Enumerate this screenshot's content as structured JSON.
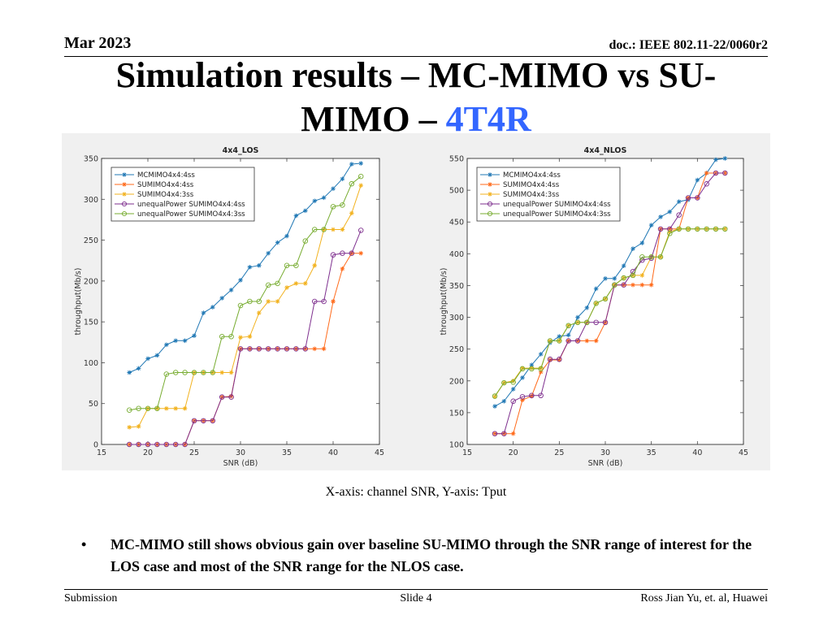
{
  "header": {
    "date": "Mar 2023",
    "doc": "doc.: IEEE 802.11-22/0060r2"
  },
  "title": {
    "line1": "Simulation results – MC-MIMO vs SU-",
    "line2_prefix": "MIMO – ",
    "line2_accent": "4T4R"
  },
  "colors": {
    "accent": "#3366ff",
    "series": [
      "#1f77b4",
      "#ff6a1a",
      "#f2b21f",
      "#7e2f8e",
      "#77ac30"
    ]
  },
  "chart_data": [
    {
      "type": "line",
      "title": "4x4_LOS",
      "xlabel": "SNR (dB)",
      "ylabel": "throughput(Mb/s)",
      "xlim": [
        15,
        45
      ],
      "ylim": [
        0,
        350
      ],
      "xticks": [
        15,
        20,
        25,
        30,
        35,
        40,
        45
      ],
      "yticks": [
        0,
        50,
        100,
        150,
        200,
        250,
        300,
        350
      ],
      "legend_position": "top-left",
      "x": [
        18,
        19,
        20,
        21,
        22,
        23,
        24,
        25,
        26,
        27,
        28,
        29,
        30,
        31,
        32,
        33,
        34,
        35,
        36,
        37,
        38,
        39,
        40,
        41,
        42,
        43
      ],
      "series": [
        {
          "name": "MCMIMO4x4:4ss",
          "marker": "star",
          "values": [
            88,
            93,
            105,
            109,
            122,
            127,
            127,
            133,
            161,
            168,
            179,
            189,
            201,
            217,
            219,
            234,
            247,
            255,
            280,
            286,
            298,
            302,
            313,
            325,
            343,
            344
          ]
        },
        {
          "name": "SUMIMO4x4:4ss",
          "marker": "star",
          "values": [
            0,
            0,
            0,
            0,
            0,
            0,
            0,
            29,
            29,
            29,
            58,
            59,
            117,
            117,
            117,
            117,
            117,
            117,
            117,
            117,
            117,
            117,
            175,
            215,
            234,
            234
          ]
        },
        {
          "name": "SUMIMO4x4:3ss",
          "marker": "star",
          "values": [
            21,
            22,
            44,
            44,
            44,
            44,
            44,
            88,
            88,
            88,
            88,
            88,
            131,
            132,
            161,
            175,
            175,
            192,
            197,
            197,
            219,
            263,
            263,
            263,
            283,
            317
          ]
        },
        {
          "name": "unequalPower SUMIMO4x4:4ss",
          "marker": "circle",
          "values": [
            0,
            0,
            0,
            0,
            0,
            0,
            0,
            29,
            29,
            29,
            58,
            58,
            117,
            117,
            117,
            117,
            117,
            117,
            117,
            117,
            175,
            175,
            232,
            234,
            234,
            262
          ]
        },
        {
          "name": "unequalPower SUMIMO4x4:3ss",
          "marker": "circle",
          "values": [
            42,
            44,
            44,
            44,
            86,
            88,
            88,
            88,
            88,
            88,
            132,
            132,
            170,
            175,
            175,
            195,
            197,
            219,
            219,
            249,
            263,
            263,
            291,
            293,
            319,
            328
          ]
        }
      ]
    },
    {
      "type": "line",
      "title": "4x4_NLOS",
      "xlabel": "SNR (dB)",
      "ylabel": "throughput(Mb/s)",
      "xlim": [
        15,
        45
      ],
      "ylim": [
        100,
        550
      ],
      "xticks": [
        15,
        20,
        25,
        30,
        35,
        40,
        45
      ],
      "yticks": [
        100,
        150,
        200,
        250,
        300,
        350,
        400,
        450,
        500,
        550
      ],
      "legend_position": "top-left",
      "x": [
        18,
        19,
        20,
        21,
        22,
        23,
        24,
        25,
        26,
        27,
        28,
        29,
        30,
        31,
        32,
        33,
        34,
        35,
        36,
        37,
        38,
        39,
        40,
        41,
        42,
        43
      ],
      "series": [
        {
          "name": "MCMIMO4x4:4ss",
          "marker": "star",
          "values": [
            160,
            168,
            187,
            205,
            225,
            242,
            260,
            270,
            272,
            300,
            315,
            345,
            361,
            361,
            381,
            408,
            417,
            445,
            458,
            466,
            482,
            485,
            516,
            527,
            548,
            550
          ]
        },
        {
          "name": "SUMIMO4x4:4ss",
          "marker": "star",
          "values": [
            117,
            117,
            117,
            170,
            176,
            214,
            233,
            233,
            263,
            263,
            263,
            263,
            292,
            351,
            351,
            351,
            351,
            351,
            439,
            439,
            439,
            488,
            488,
            527,
            527,
            527
          ]
        },
        {
          "name": "SUMIMO4x4:3ss",
          "marker": "star",
          "values": [
            175,
            197,
            200,
            220,
            220,
            220,
            263,
            263,
            287,
            292,
            292,
            322,
            329,
            351,
            362,
            366,
            366,
            395,
            395,
            435,
            439,
            439,
            439,
            439,
            439,
            439
          ]
        },
        {
          "name": "unequalPower SUMIMO4x4:4ss",
          "marker": "circle",
          "values": [
            117,
            117,
            168,
            175,
            177,
            177,
            234,
            234,
            263,
            263,
            292,
            292,
            292,
            351,
            351,
            372,
            390,
            393,
            439,
            439,
            461,
            488,
            488,
            510,
            527,
            527
          ]
        },
        {
          "name": "unequalPower SUMIMO4x4:3ss",
          "marker": "circle",
          "values": [
            176,
            197,
            198,
            219,
            219,
            219,
            263,
            263,
            287,
            292,
            292,
            322,
            329,
            351,
            362,
            366,
            395,
            395,
            395,
            432,
            439,
            439,
            439,
            439,
            439,
            439
          ]
        }
      ]
    }
  ],
  "caption": "X-axis: channel SNR, Y-axis: Tput",
  "bullet": {
    "symbol": "•",
    "text": "MC-MIMO still shows obvious gain over baseline SU-MIMO  through the SNR range of interest for the LOS case and most of the SNR range for the NLOS case."
  },
  "footer": {
    "left": "Submission",
    "center": "Slide 4",
    "right": "Ross Jian Yu, et. al, Huawei"
  }
}
